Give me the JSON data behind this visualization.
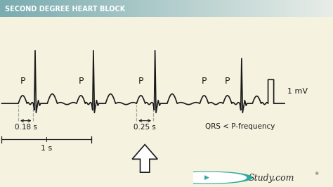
{
  "title": "SECOND DEGREE HEART BLOCK",
  "background_color": "#f5f2e0",
  "title_bg_color_left": "#7aacb0",
  "title_bg_color_right": "#e8ede8",
  "ekg_color": "#1a1a1a",
  "label_color": "#1a1a1a",
  "dashed_color": "#aaaaaa",
  "p_wave_label": "P",
  "mv_label": "1 mV",
  "annotation_018": "0.18 s",
  "annotation_025": "0.25 s",
  "annotation_1s": "1 s",
  "annotation_qrs": "QRS < P-frequency",
  "studycom_circle_color": "#2ea8a0",
  "studycom_text_color": "#2a2a2a",
  "studycom_bg": "#d8d8d0",
  "title_text_color": "#ffffff",
  "title_fontsize": 7,
  "p_fontsize": 9,
  "annotation_fontsize": 7.5,
  "mv_fontsize": 8
}
